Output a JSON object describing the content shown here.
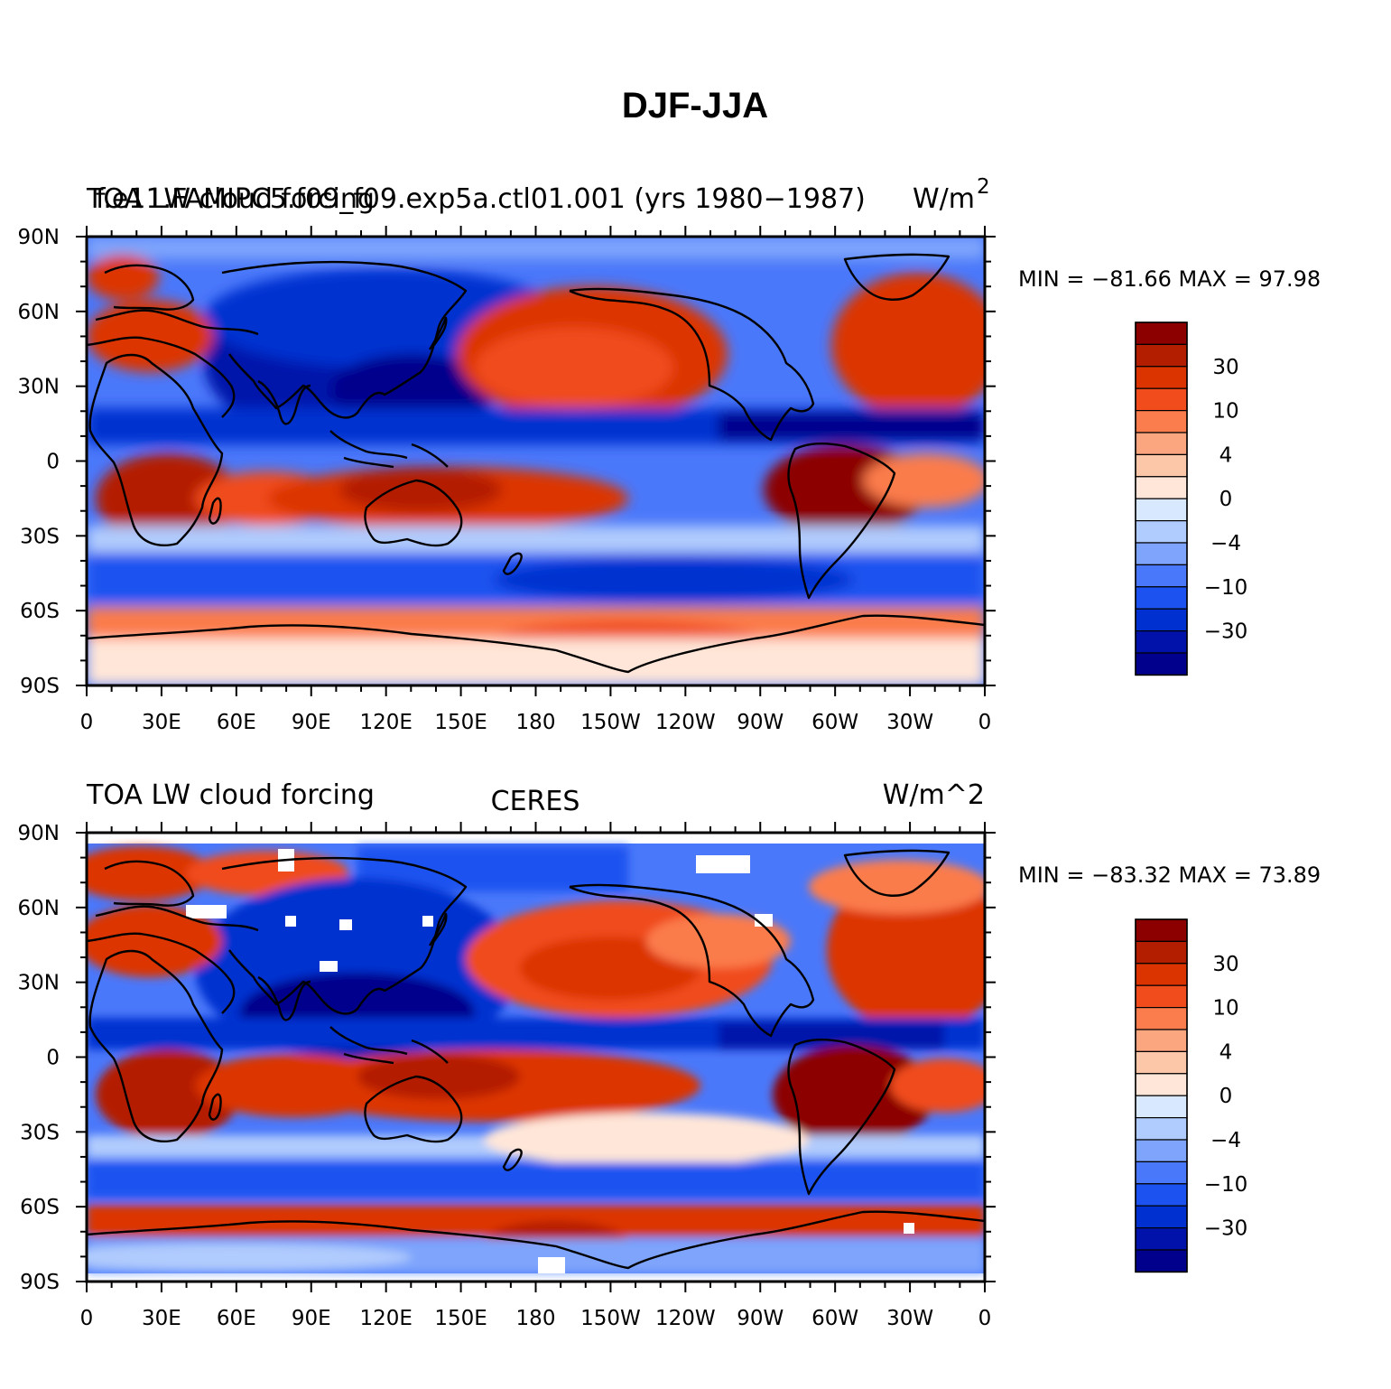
{
  "title": "DJF-JJA",
  "palette": [
    "#00008c",
    "#0012aa",
    "#0030d0",
    "#1c52f0",
    "#4a78fa",
    "#7ea4fc",
    "#b0cbfd",
    "#d8e8ff",
    "#ffe6d8",
    "#fcc6a8",
    "#fca680",
    "#fb7c4c",
    "#f04c1c",
    "#dc3400",
    "#b41e00",
    "#8c0000"
  ],
  "colorbar_labels": [
    "30",
    "10",
    "4",
    "0",
    "−4",
    "−10",
    "−30"
  ],
  "y_tick_labels": [
    "90N",
    "60N",
    "30N",
    "0",
    "30S",
    "60S",
    "90S"
  ],
  "x_tick_labels": [
    "0",
    "30E",
    "60E",
    "90E",
    "120E",
    "150E",
    "180",
    "150W",
    "120W",
    "90W",
    "60W",
    "30W",
    "0"
  ],
  "panels": [
    {
      "left_title_a": "TOA LW cloud forcing",
      "left_title_b": "f.e11.FAMIPC5.f09_f09.exp5a.ctl01.001 (yrs 1980−1987)",
      "units": "W/m",
      "units_sup": "2",
      "stats": "MIN = −81.66  MAX =   97.98"
    },
    {
      "left_title": "TOA LW cloud forcing",
      "center_title": "CERES",
      "units": "W/m^2",
      "stats": "MIN = −83.32  MAX =   73.89"
    }
  ],
  "chart_data": [
    {
      "type": "heatmap",
      "title": "TOA LW cloud forcing  f.e11.FAMIPC5.f09_f09.exp5a.ctl01.001 (yrs 1980−1987)",
      "units": "W/m^2",
      "min": -81.66,
      "max": 97.98,
      "x_range": [
        "0",
        "0"
      ],
      "y_range": [
        "90S",
        "90N"
      ],
      "levels": [
        -50,
        -40,
        -30,
        -20,
        -15,
        -10,
        -6,
        -4,
        -2,
        0,
        2,
        4,
        6,
        10,
        15,
        20,
        30,
        40,
        50
      ]
    },
    {
      "type": "heatmap",
      "title": "TOA LW cloud forcing  CERES",
      "units": "W/m^2",
      "min": -83.32,
      "max": 73.89,
      "x_range": [
        "0",
        "0"
      ],
      "y_range": [
        "90S",
        "90N"
      ],
      "levels": [
        -50,
        -40,
        -30,
        -20,
        -15,
        -10,
        -6,
        -4,
        -2,
        0,
        2,
        4,
        6,
        10,
        15,
        20,
        30,
        40,
        50
      ]
    }
  ]
}
